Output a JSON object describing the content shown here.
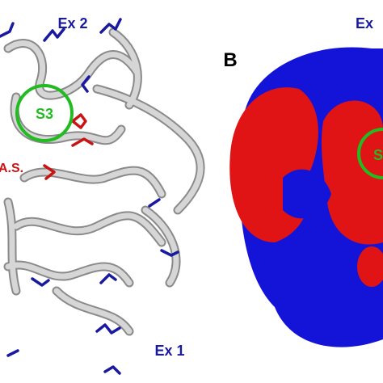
{
  "panels": [
    {
      "labels": {
        "top": "Ex 2",
        "site": "S3",
        "active_site": "A.S.",
        "bottom": "Ex 1"
      }
    },
    {
      "letter": "B",
      "labels": {
        "top": "Ex",
        "site": "S"
      }
    }
  ]
}
